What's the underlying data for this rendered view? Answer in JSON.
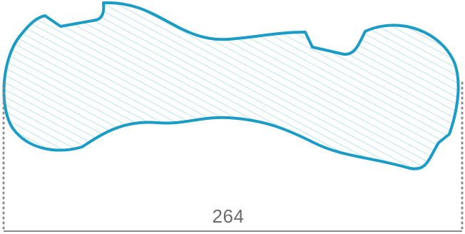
{
  "measurement": {
    "width_label": "264"
  },
  "colors": {
    "outline": "#1a9cc6",
    "hatch": "#86cfdf",
    "dimension_line": "#8a8a8a",
    "label": "#6b6b6b",
    "background": "#ffffff"
  }
}
